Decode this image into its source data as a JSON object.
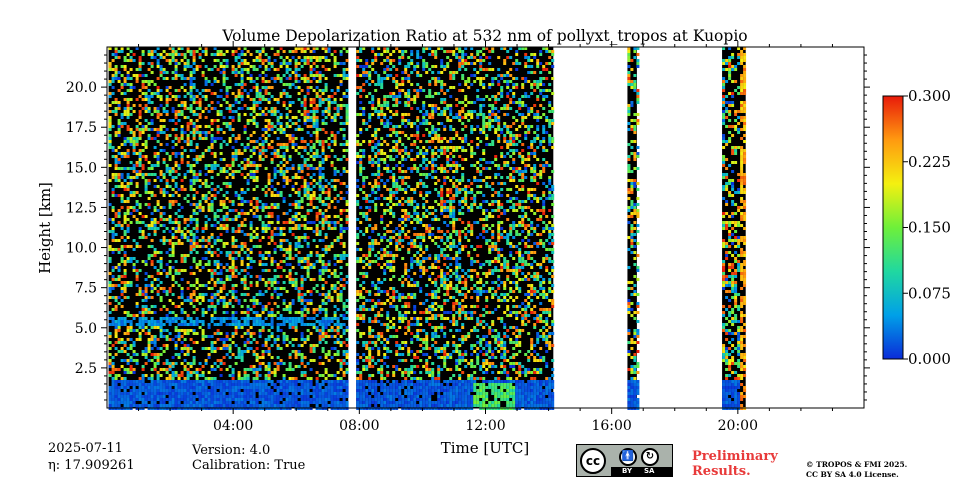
{
  "chart_data": {
    "type": "heatmap",
    "title": "Volume Depolarization Ratio at 532 nm of pollyxt_tropos at Kuopio",
    "xlabel": "Time [UTC]",
    "ylabel": "Height [km]",
    "xlim_hours": [
      0,
      24
    ],
    "ylim_km": [
      0,
      22.5
    ],
    "x_ticks": [
      {
        "value": 4,
        "label": "04:00"
      },
      {
        "value": 8,
        "label": "08:00"
      },
      {
        "value": 12,
        "label": "12:00"
      },
      {
        "value": 16,
        "label": "16:00"
      },
      {
        "value": 20,
        "label": "20:00"
      }
    ],
    "y_ticks": [
      {
        "value": 2.5,
        "label": "2.5"
      },
      {
        "value": 5.0,
        "label": "5.0"
      },
      {
        "value": 7.5,
        "label": "7.5"
      },
      {
        "value": 10.0,
        "label": "10.0"
      },
      {
        "value": 12.5,
        "label": "12.5"
      },
      {
        "value": 15.0,
        "label": "15.0"
      },
      {
        "value": 17.5,
        "label": "17.5"
      },
      {
        "value": 20.0,
        "label": "20.0"
      }
    ],
    "colorbar": {
      "min": 0.0,
      "max": 0.3,
      "ticks": [
        {
          "value": 0.0,
          "label": "0.000"
        },
        {
          "value": 0.075,
          "label": "0.075"
        },
        {
          "value": 0.15,
          "label": "0.150"
        },
        {
          "value": 0.225,
          "label": "0.225"
        },
        {
          "value": 0.3,
          "label": "0.300"
        }
      ],
      "colors": [
        "#0a2bd8",
        "#00a0e8",
        "#20d8a0",
        "#6ef03a",
        "#f4f010",
        "#ff9a10",
        "#e81a0a"
      ]
    },
    "data_segments_hours": [
      {
        "start": 0.05,
        "end": 7.65
      },
      {
        "start": 7.9,
        "end": 14.15
      },
      {
        "start": 16.5,
        "end": 16.8
      },
      {
        "start": 19.5,
        "end": 20.25
      }
    ],
    "features": {
      "boundary_layer_top_km": 1.8,
      "aerosol_layer_km": 5.5,
      "elevated_depol_hours": [
        11.6,
        12.9
      ],
      "elevated_depol_value": 0.14,
      "high_depol_column_hours": [
        20.0,
        20.25
      ],
      "high_depol_column_value": 0.25
    }
  },
  "info": {
    "date": "2025-07-11",
    "eta": "η: 17.909261",
    "version": "Version: 4.0",
    "calibration": "Calibration: True"
  },
  "badge": {
    "cc": "cc",
    "by": "BY",
    "sa": "SA"
  },
  "prelim": {
    "line1": "Preliminary",
    "line2": "Results."
  },
  "license": {
    "line1": "© TROPOS & FMI 2025.",
    "line2": "CC BY SA 4.0 License."
  }
}
